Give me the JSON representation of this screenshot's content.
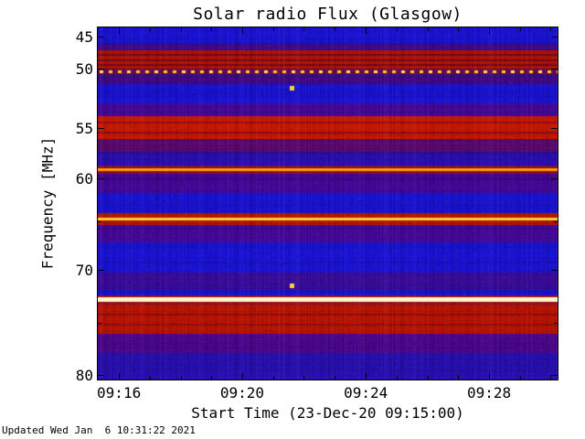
{
  "title": "Solar radio Flux (Glasgow)",
  "footer": "Updated Wed Jan  6 10:31:22 2021",
  "chart_data": {
    "type": "heatmap",
    "title": "Solar radio Flux (Glasgow)",
    "xlabel": "Start Time (23-Dec-20 09:15:00)",
    "ylabel": "Frequency [MHz]",
    "x_range": [
      "09:15",
      "09:30"
    ],
    "y_range": [
      45,
      80
    ],
    "y_axis_inverted": true,
    "grid": false,
    "legend": "none",
    "background_color": "#1a13d6",
    "frame_color": "#000000",
    "x_ticks": [
      {
        "label": "09:16",
        "pos": 0.046
      },
      {
        "label": "09:20",
        "pos": 0.314
      },
      {
        "label": "09:24",
        "pos": 0.583
      },
      {
        "label": "09:28",
        "pos": 0.851
      }
    ],
    "x_minor_ticks": [
      0.113,
      0.18,
      0.247,
      0.381,
      0.448,
      0.515,
      0.65,
      0.717,
      0.784,
      0.918,
      0.985
    ],
    "y_ticks": [
      {
        "label": "45",
        "pos": 0.026
      },
      {
        "label": "50",
        "pos": 0.117
      },
      {
        "label": "55",
        "pos": 0.286
      },
      {
        "label": "60",
        "pos": 0.429
      },
      {
        "label": "70",
        "pos": 0.688
      },
      {
        "label": "80",
        "pos": 0.987
      }
    ],
    "y_minor_ticks": [
      0.55,
      0.84
    ],
    "bands": [
      {
        "y0": 0.0,
        "y1": 0.048,
        "color": "#1a13d6",
        "freq_mhz": "45-46.5",
        "level": "quiet blue"
      },
      {
        "y0": 0.048,
        "y1": 0.066,
        "color": "#40088f",
        "freq_mhz": "46.5-47",
        "level": "purple"
      },
      {
        "y0": 0.066,
        "y1": 0.118,
        "color": "#b51400",
        "freq_mhz": "47-49",
        "level": "strong red band"
      },
      {
        "y0": 0.118,
        "y1": 0.132,
        "color": "#6a0a50",
        "freq_mhz": "49-49.8",
        "level": "dark red-purple"
      },
      {
        "y0": 0.132,
        "y1": 0.16,
        "color": "#3f0a86",
        "freq_mhz": "49.8-50.8",
        "level": "purple"
      },
      {
        "y0": 0.16,
        "y1": 0.215,
        "color": "#1a13d6",
        "freq_mhz": "50.8-52.5",
        "level": "quiet blue"
      },
      {
        "y0": 0.215,
        "y1": 0.252,
        "color": "#46089a",
        "freq_mhz": "52.5-53.8",
        "level": "purple"
      },
      {
        "y0": 0.252,
        "y1": 0.318,
        "color": "#cc1800",
        "freq_mhz": "54-56",
        "level": "strong red band"
      },
      {
        "y0": 0.318,
        "y1": 0.352,
        "color": "#5c0a70",
        "freq_mhz": "56-57.2",
        "level": "dark purple"
      },
      {
        "y0": 0.352,
        "y1": 0.392,
        "color": "#2a0fb4",
        "freq_mhz": "57.2-59.2",
        "level": "blue-purple"
      },
      {
        "y0": 0.392,
        "y1": 0.415,
        "color": "#8c1030",
        "freq_mhz": "59.2-60",
        "level": "reddish around RFI line"
      },
      {
        "y0": 0.415,
        "y1": 0.47,
        "color": "#46089a",
        "freq_mhz": "60-61.8",
        "level": "purple"
      },
      {
        "y0": 0.47,
        "y1": 0.528,
        "color": "#1a13d6",
        "freq_mhz": "61.8-63.8",
        "level": "quiet blue"
      },
      {
        "y0": 0.528,
        "y1": 0.562,
        "color": "#b81800",
        "freq_mhz": "64-65",
        "level": "red around RFI line"
      },
      {
        "y0": 0.562,
        "y1": 0.61,
        "color": "#46089a",
        "freq_mhz": "65-66.5",
        "level": "purple"
      },
      {
        "y0": 0.61,
        "y1": 0.695,
        "color": "#1a13d6",
        "freq_mhz": "66.5-70",
        "level": "quiet blue"
      },
      {
        "y0": 0.695,
        "y1": 0.745,
        "color": "#3a0c9c",
        "freq_mhz": "70-71.3",
        "level": "purple-blue"
      },
      {
        "y0": 0.745,
        "y1": 0.762,
        "color": "#1a13d6",
        "freq_mhz": "71.3-72.2",
        "level": "quiet blue"
      },
      {
        "y0": 0.762,
        "y1": 0.79,
        "color": "#a01020",
        "freq_mhz": "72.2-73.2",
        "level": "red edge of bright line"
      },
      {
        "y0": 0.79,
        "y1": 0.87,
        "color": "#bc1400",
        "freq_mhz": "73.2-76",
        "level": "strong red band"
      },
      {
        "y0": 0.87,
        "y1": 0.925,
        "color": "#4d0890",
        "freq_mhz": "76-78",
        "level": "purple"
      },
      {
        "y0": 0.925,
        "y1": 1.0,
        "color": "#2a0fb4",
        "freq_mhz": "78-80",
        "level": "blue-purple"
      }
    ],
    "stripes": [
      {
        "y": 0.075,
        "h": 2,
        "color": "#3c0040",
        "alpha": 0.55
      },
      {
        "y": 0.09,
        "h": 2,
        "color": "#3c0040",
        "alpha": 0.55
      },
      {
        "y": 0.104,
        "h": 2,
        "color": "#3c0040",
        "alpha": 0.55
      },
      {
        "y": 0.268,
        "h": 2,
        "color": "#500030",
        "alpha": 0.4
      },
      {
        "y": 0.296,
        "h": 2,
        "color": "#500030",
        "alpha": 0.4
      },
      {
        "y": 0.812,
        "h": 2,
        "color": "#500030",
        "alpha": 0.4
      },
      {
        "y": 0.842,
        "h": 2,
        "color": "#500030",
        "alpha": 0.4
      }
    ],
    "rfi_lines": [
      {
        "y": 0.403,
        "thickness": 3,
        "color": "#ff9a00",
        "freq_mhz": 59.5
      },
      {
        "y": 0.545,
        "thickness": 3,
        "color": "#ffcc33",
        "freq_mhz": 64.5
      },
      {
        "y": 0.772,
        "thickness": 5,
        "color": "#fff6c8",
        "freq_mhz": 72.5
      }
    ],
    "dotted_line": {
      "y": 0.125,
      "freq_mhz": 49.7,
      "color": "#ffcc22",
      "dash": 4,
      "gap": 6,
      "height": 3
    },
    "point_events": [
      {
        "x": 0.423,
        "y": 0.172,
        "size": 5,
        "color": "#ffd040",
        "freq_mhz": 51,
        "time": "09:21"
      },
      {
        "x": 0.423,
        "y": 0.735,
        "size": 5,
        "color": "#ffd040",
        "freq_mhz": 71,
        "time": "09:21"
      }
    ]
  }
}
